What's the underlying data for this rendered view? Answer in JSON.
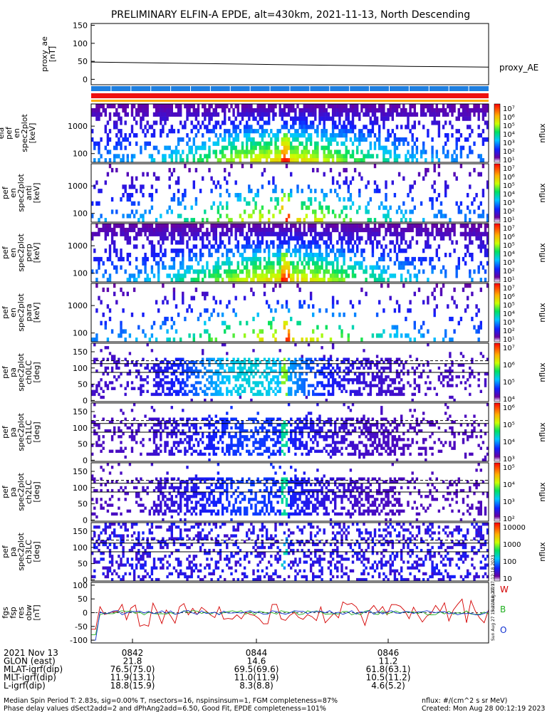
{
  "title": "PRELIMINARY ELFIN-A EPDE, alt=430km, 2021-11-13, North Descending",
  "chart_data": [
    {
      "type": "line",
      "ylabel": "proxy_ae\n[nT]",
      "yticks": [
        "150",
        "100",
        "50",
        "0"
      ],
      "ylim": [
        -15,
        155
      ],
      "series": [
        {
          "name": "proxy_AE",
          "x": [
            0,
            0.4,
            0.8,
            1.0
          ],
          "values": [
            48,
            42,
            36,
            34
          ]
        }
      ]
    },
    {
      "type": "heatmap",
      "ylabel": "ela\npef\nen\nspec2plot\n[keV]",
      "yticks": [
        "1000",
        "100"
      ],
      "colorbar": {
        "ticks": [
          "10⁷",
          "10⁶",
          "10⁵",
          "10⁴",
          "10³",
          "10²",
          "10¹"
        ],
        "label": "nflux"
      }
    },
    {
      "type": "heatmap",
      "ylabel": "ela\npef\nen\nspec2plot\nanti\n[keV]",
      "yticks": [
        "1000",
        "100"
      ],
      "colorbar": {
        "ticks": [
          "10⁷",
          "10⁶",
          "10⁵",
          "10⁴",
          "10³",
          "10²",
          "10¹"
        ],
        "label": "nflux"
      }
    },
    {
      "type": "heatmap",
      "ylabel": "ela\npef\nen\nspec2plot\nperp\n[keV]",
      "yticks": [
        "1000",
        "100"
      ],
      "colorbar": {
        "ticks": [
          "10⁷",
          "10⁶",
          "10⁵",
          "10⁴",
          "10³",
          "10²",
          "10¹"
        ],
        "label": "nflux"
      }
    },
    {
      "type": "heatmap",
      "ylabel": "ela\npef\nen\nspec2plot\npara\n[keV]",
      "yticks": [
        "1000",
        "100"
      ],
      "colorbar": {
        "ticks": [
          "10⁷",
          "10⁶",
          "10⁵",
          "10⁴",
          "10³",
          "10²",
          "10¹"
        ],
        "label": "nflux"
      }
    },
    {
      "type": "heatmap",
      "ylabel": "ela\npef\npa\nspec2plot\nch0LC\n[deg]",
      "yticks": [
        "150",
        "100",
        "50",
        "0"
      ],
      "colorbar": {
        "ticks": [
          "10⁷",
          "10⁶",
          "10⁵",
          "10⁴"
        ],
        "label": "nflux"
      }
    },
    {
      "type": "heatmap",
      "ylabel": "ela\npef\npa\nspec2plot\nch1LC\n[deg]",
      "yticks": [
        "150",
        "100",
        "50",
        "0"
      ],
      "colorbar": {
        "ticks": [
          "10⁶",
          "10⁵",
          "10⁴",
          "10³"
        ],
        "label": "nflux"
      }
    },
    {
      "type": "heatmap",
      "ylabel": "ela\npef\npa\nspec2plot\nch2LC\n[deg]",
      "yticks": [
        "150",
        "100",
        "50",
        "0"
      ],
      "colorbar": {
        "ticks": [
          "10⁵",
          "10⁴",
          "10³",
          "10²"
        ],
        "label": "nflux"
      }
    },
    {
      "type": "heatmap",
      "ylabel": "ela\npef\npa\nspec2plot\nch3LC\n[deg]",
      "yticks": [
        "150",
        "100",
        "50",
        "0"
      ],
      "colorbar": {
        "ticks": [
          "10000",
          "1000",
          "100",
          "10"
        ],
        "label": "nflux"
      }
    },
    {
      "type": "line",
      "ylabel": "ela\nfgs\nfsp\nres\nobw\n[nT]",
      "yticks": [
        "100",
        "50",
        "0",
        "-50",
        "-100"
      ],
      "ylim": [
        -110,
        110
      ],
      "legend": [
        {
          "label": "W",
          "color": "#d40000"
        },
        {
          "label": "B",
          "color": "#20b020"
        },
        {
          "label": "O",
          "color": "#1030d0"
        }
      ]
    }
  ],
  "footer": {
    "rows": [
      {
        "label": "2021 Nov 13",
        "v": [
          "0842",
          "0844",
          "0846"
        ]
      },
      {
        "label": "GLON (east)",
        "v": [
          "21.8",
          "14.6",
          "11.2"
        ]
      },
      {
        "label": "MLAT-igrf(dip)",
        "v": [
          "76.5(75.0)",
          "69.5(69.6)",
          "61.8(63.1)"
        ]
      },
      {
        "label": "MLT-igrf(dip)",
        "v": [
          "11.9(13.1)",
          "11.0(11.9)",
          "10.5(11.2)"
        ]
      },
      {
        "label": "L-igrf(dip)",
        "v": [
          "18.8(15.9)",
          "8.3(8.8)",
          "4.6(5.2)"
        ]
      }
    ],
    "note1": "Median Spin Period T: 2.83s, sig=0.00% T, nsectors=16, nspinsinsum=1, FGM completeness=87%",
    "note2": "Phase delay values dSect2add=2 and dPhAng2add=6.50, Good Fit, EPDE completeness=101%",
    "units": "nflux: #/(cm^2 s sr MeV)",
    "created": "Created: Mon Aug 28 00:12:19 2023",
    "side_left": "Sun Aug 27 17:12:18 2023",
    "side_right": "Sun Aug 27 17:12:18 2023"
  },
  "colors": {
    "status_blue": "#1f7fe0",
    "status_red": "#ee1111",
    "status_orange": "#ffaa00"
  }
}
